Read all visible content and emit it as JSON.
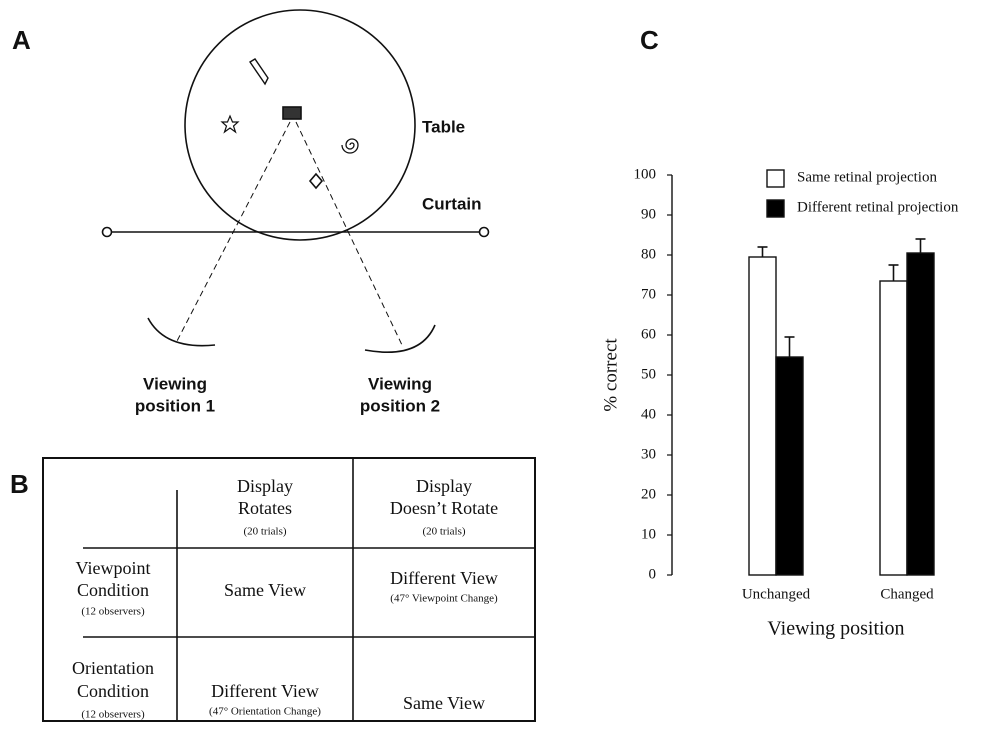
{
  "panel_labels": [
    "A",
    "B",
    "C"
  ],
  "diagram": {
    "table_label": "Table",
    "curtain_label": "Curtain",
    "positions": [
      [
        "Viewing",
        "position 1"
      ],
      [
        "Viewing",
        "position 2"
      ]
    ]
  },
  "table": {
    "columns": [
      {
        "lines": [
          "Display",
          "Rotates"
        ],
        "note": "(20 trials)"
      },
      {
        "lines": [
          "Display",
          "Doesn’t Rotate"
        ],
        "note": "(20 trials)"
      }
    ],
    "rows": [
      {
        "lines": [
          "Viewpoint",
          "Condition"
        ],
        "note": "(12 observers)",
        "cells": [
          {
            "lines": [
              "Same View"
            ]
          },
          {
            "lines": [
              "Different View"
            ],
            "note": "(47° Viewpoint Change)"
          }
        ]
      },
      {
        "lines": [
          "Orientation",
          "Condition"
        ],
        "note": "(12 observers)",
        "cells": [
          {
            "lines": [
              "Different View"
            ],
            "note": "(47° Orientation Change)"
          },
          {
            "lines": [
              "Same View"
            ]
          }
        ]
      }
    ]
  },
  "chart_data": {
    "type": "bar",
    "xlabel": "Viewing position",
    "ylabel": "% correct",
    "categories": [
      "Unchanged",
      "Changed"
    ],
    "series": [
      {
        "name": "Same retinal projection",
        "color": "#ffffff",
        "values": [
          79.5,
          73.5
        ],
        "errors": [
          2.5,
          4
        ]
      },
      {
        "name": "Different retinal projection",
        "color": "#000000",
        "values": [
          54.5,
          80.5
        ],
        "errors": [
          5,
          3.5
        ]
      }
    ],
    "ylim": [
      0,
      100
    ],
    "yticks": [
      0,
      10,
      20,
      30,
      40,
      50,
      60,
      70,
      80,
      90,
      100
    ],
    "grid": false
  }
}
